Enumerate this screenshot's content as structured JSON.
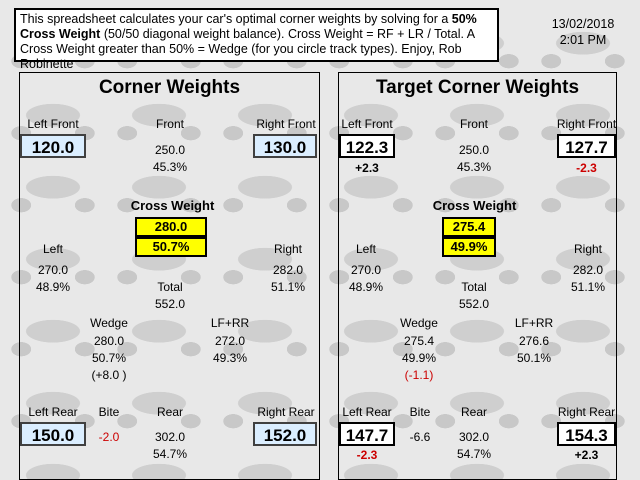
{
  "info": {
    "text_a": "This spreadsheet calculates your car's optimal corner weights by solving for a ",
    "text_bold_a": "50% Cross Weight",
    "text_b": " (50/50 diagonal weight balance).  Cross Weight = RF + LR / Total. A Cross Weight greater than 50% = Wedge (for you circle track types). Enjoy, Rob Robinette"
  },
  "date": "13/02/2018",
  "time": "2:01 PM",
  "left": {
    "title": "Corner Weights",
    "lf_label": "Left Front",
    "lf_value": "120.0",
    "front_label": "Front",
    "front_value": "250.0",
    "front_pct": "45.3%",
    "rf_label": "Right Front",
    "rf_value": "130.0",
    "cw_label": "Cross Weight",
    "cw_value": "280.0",
    "cw_pct": "50.7%",
    "left_label": "Left",
    "left_value": "270.0",
    "left_pct": "48.9%",
    "right_label": "Right",
    "right_value": "282.0",
    "right_pct": "51.1%",
    "total_label": "Total",
    "total_value": "552.0",
    "wedge_label": "Wedge",
    "wedge_value": "280.0",
    "wedge_pct": "50.7%",
    "wedge_delta": "(+8.0 )",
    "lfrr_label": "LF+RR",
    "lfrr_value": "272.0",
    "lfrr_pct": "49.3%",
    "lr_label": "Left Rear",
    "lr_value": "150.0",
    "bite_label": "Bite",
    "bite_value": "-2.0",
    "rear_label": "Rear",
    "rear_value": "302.0",
    "rear_pct": "54.7%",
    "rr_label": "Right Rear",
    "rr_value": "152.0"
  },
  "right": {
    "title": "Target Corner Weights",
    "lf_label": "Left Front",
    "lf_value": "122.3",
    "lf_delta": "+2.3",
    "front_label": "Front",
    "front_value": "250.0",
    "front_pct": "45.3%",
    "rf_label": "Right Front",
    "rf_value": "127.7",
    "rf_delta": "-2.3",
    "cw_label": "Cross Weight",
    "cw_value": "275.4",
    "cw_pct": "49.9%",
    "left_label": "Left",
    "left_value": "270.0",
    "left_pct": "48.9%",
    "right_label": "Right",
    "right_value": "282.0",
    "right_pct": "51.1%",
    "total_label": "Total",
    "total_value": "552.0",
    "wedge_label": "Wedge",
    "wedge_value": "275.4",
    "wedge_pct": "49.9%",
    "wedge_delta": "(-1.1)",
    "lfrr_label": "LF+RR",
    "lfrr_value": "276.6",
    "lfrr_pct": "50.1%",
    "lr_label": "Left Rear",
    "lr_value": "147.7",
    "lr_delta": "-2.3",
    "bite_label": "Bite",
    "bite_value": "-6.6",
    "rear_label": "Rear",
    "rear_value": "302.0",
    "rear_pct": "54.7%",
    "rr_label": "Right Rear",
    "rr_value": "154.3",
    "rr_delta": "+2.3"
  },
  "colors": {
    "accent_yellow": "#ffff00",
    "input_blue": "#dbeeff",
    "negative_red": "#cc0000"
  }
}
